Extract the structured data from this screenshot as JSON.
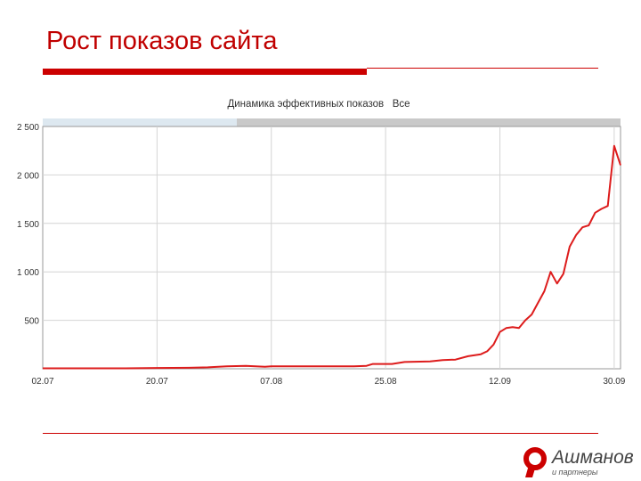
{
  "slide": {
    "title": "Рост показов сайта"
  },
  "logo": {
    "word": "Ашманов",
    "sub": "и партнеры",
    "color": "#cc0000"
  },
  "chart_data": {
    "type": "line",
    "title": "Динамика эффективных показов   Все",
    "xlabel": "",
    "ylabel": "",
    "ylim": [
      0,
      2500
    ],
    "yticks": [
      500,
      1000,
      1500,
      2000,
      2500
    ],
    "ytick_labels": [
      "500",
      "1 000",
      "1 500",
      "2 000",
      "2 500"
    ],
    "xlim": [
      "2010-07-02",
      "2010-10-01"
    ],
    "xticks": [
      "2010-07-02",
      "2010-07-20",
      "2010-08-07",
      "2010-08-25",
      "2010-09-12",
      "2010-09-30"
    ],
    "xtick_labels": [
      "02.07",
      "20.07",
      "07.08",
      "25.08",
      "12.09",
      "30.09"
    ],
    "grid": true,
    "line_color": "#dd1c1c",
    "series": [
      {
        "name": "",
        "x": [
          "2010-07-02",
          "2010-07-05",
          "2010-07-10",
          "2010-07-15",
          "2010-07-20",
          "2010-07-25",
          "2010-07-28",
          "2010-07-31",
          "2010-08-03",
          "2010-08-06",
          "2010-08-07",
          "2010-08-10",
          "2010-08-15",
          "2010-08-20",
          "2010-08-22",
          "2010-08-23",
          "2010-08-26",
          "2010-08-28",
          "2010-09-01",
          "2010-09-03",
          "2010-09-05",
          "2010-09-07",
          "2010-09-09",
          "2010-09-10",
          "2010-09-11",
          "2010-09-12",
          "2010-09-13",
          "2010-09-14",
          "2010-09-15",
          "2010-09-16",
          "2010-09-17",
          "2010-09-18",
          "2010-09-19",
          "2010-09-20",
          "2010-09-21",
          "2010-09-22",
          "2010-09-23",
          "2010-09-24",
          "2010-09-25",
          "2010-09-26",
          "2010-09-27",
          "2010-09-28",
          "2010-09-29",
          "2010-09-30",
          "2010-10-01"
        ],
        "y": [
          5,
          5,
          5,
          5,
          8,
          10,
          15,
          25,
          30,
          20,
          25,
          25,
          25,
          25,
          30,
          50,
          50,
          70,
          75,
          90,
          95,
          130,
          150,
          180,
          250,
          380,
          420,
          430,
          420,
          500,
          560,
          680,
          800,
          1000,
          880,
          980,
          1260,
          1380,
          1460,
          1480,
          1610,
          1650,
          1680,
          2300,
          2100
        ]
      }
    ]
  }
}
